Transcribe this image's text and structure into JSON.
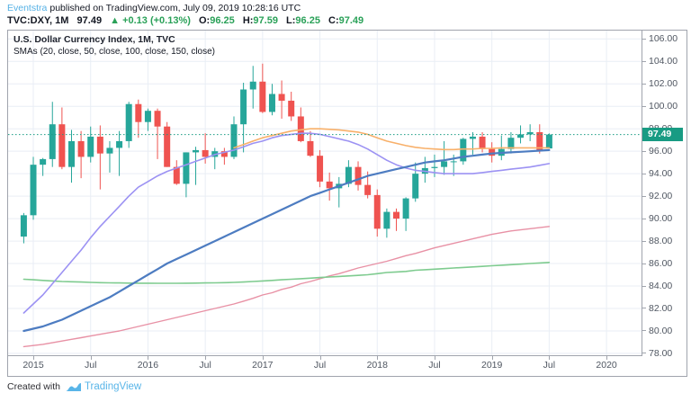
{
  "header": {
    "publisher": "Eventstra",
    "published_text": "published on TradingView.com, July 09, 2019 10:28:16 UTC",
    "symbol": "TVC:DXY, 1M",
    "last_price": "97.49",
    "change_arrow": "▲",
    "change_text": "+0.13 (+0.13%)",
    "ohlc": [
      {
        "label": "O:",
        "value": "96.25"
      },
      {
        "label": "H:",
        "value": "97.59"
      },
      {
        "label": "L:",
        "value": "96.25"
      },
      {
        "label": "C:",
        "value": "97.49"
      }
    ]
  },
  "chart": {
    "title": "U.S. Dollar Currency Index, 1M, TVC",
    "subtitle": "SMAs (20, close, 50, close, 100, close, 150, close)"
  },
  "footer": {
    "created_with": "Created with",
    "brand": "TradingView"
  },
  "chart_data": {
    "type": "candlestick",
    "symbol": "TVC:DXY",
    "timeframe": "1M",
    "grid": true,
    "colors": {
      "up": "#26a69a",
      "down": "#ef5350",
      "current_price": "#189b83",
      "grid": "#e9eef5",
      "axis_text": "#4f5661",
      "header_green": "#2aa158",
      "brand_blue": "#59b5e8"
    },
    "y_axis": {
      "min": 78,
      "max": 106,
      "step": 2,
      "labels": [
        "106.00",
        "104.00",
        "102.00",
        "100.00",
        "98.00",
        "96.00",
        "94.00",
        "92.00",
        "90.00",
        "88.00",
        "86.00",
        "84.00",
        "82.00",
        "80.00",
        "78.00"
      ]
    },
    "x_ticks": [
      {
        "label": "2015",
        "month_index": 1
      },
      {
        "label": "Jul",
        "month_index": 7
      },
      {
        "label": "2016",
        "month_index": 13
      },
      {
        "label": "Jul",
        "month_index": 19
      },
      {
        "label": "2017",
        "month_index": 25
      },
      {
        "label": "Jul",
        "month_index": 31
      },
      {
        "label": "2018",
        "month_index": 37
      },
      {
        "label": "Jul",
        "month_index": 43
      },
      {
        "label": "2019",
        "month_index": 49
      },
      {
        "label": "Jul",
        "month_index": 55
      },
      {
        "label": "2020",
        "month_index": 61
      }
    ],
    "current_price": {
      "value": 97.49,
      "label": "97.49"
    },
    "candles": [
      [
        "2014-12",
        88.4,
        90.5,
        87.8,
        90.3
      ],
      [
        "2015-01",
        90.3,
        95.5,
        89.9,
        94.8
      ],
      [
        "2015-02",
        94.8,
        95.4,
        93.8,
        95.3
      ],
      [
        "2015-03",
        95.3,
        100.4,
        94.6,
        98.4
      ],
      [
        "2015-04",
        98.4,
        99.9,
        94.4,
        94.6
      ],
      [
        "2015-05",
        94.6,
        97.9,
        93.2,
        96.9
      ],
      [
        "2015-06",
        96.9,
        97.8,
        93.6,
        95.5
      ],
      [
        "2015-07",
        95.5,
        98.2,
        95.0,
        97.3
      ],
      [
        "2015-08",
        97.3,
        98.3,
        92.6,
        95.8
      ],
      [
        "2015-09",
        95.8,
        96.9,
        94.1,
        96.3
      ],
      [
        "2015-10",
        96.3,
        97.8,
        93.8,
        96.9
      ],
      [
        "2015-11",
        96.9,
        100.4,
        96.3,
        100.2
      ],
      [
        "2015-12",
        100.2,
        100.6,
        97.2,
        98.6
      ],
      [
        "2016-01",
        98.6,
        99.8,
        97.8,
        99.6
      ],
      [
        "2016-02",
        99.6,
        99.8,
        95.3,
        98.2
      ],
      [
        "2016-03",
        98.2,
        98.6,
        94.6,
        94.6
      ],
      [
        "2016-04",
        94.6,
        95.2,
        93.0,
        93.1
      ],
      [
        "2016-05",
        93.1,
        95.9,
        91.9,
        95.9
      ],
      [
        "2016-06",
        95.9,
        96.4,
        93.0,
        96.1
      ],
      [
        "2016-07",
        96.1,
        97.6,
        94.9,
        95.5
      ],
      [
        "2016-08",
        95.5,
        96.3,
        94.4,
        96.0
      ],
      [
        "2016-09",
        96.0,
        96.3,
        94.8,
        95.5
      ],
      [
        "2016-10",
        95.5,
        99.1,
        95.3,
        98.4
      ],
      [
        "2016-11",
        98.4,
        102.1,
        95.9,
        101.5
      ],
      [
        "2016-12",
        101.5,
        103.6,
        99.8,
        102.2
      ],
      [
        "2017-01",
        102.2,
        103.8,
        99.4,
        99.5
      ],
      [
        "2017-02",
        99.5,
        102.0,
        99.2,
        101.1
      ],
      [
        "2017-03",
        101.1,
        102.3,
        98.9,
        100.5
      ],
      [
        "2017-04",
        100.5,
        101.3,
        98.7,
        99.1
      ],
      [
        "2017-05",
        99.1,
        99.9,
        96.8,
        96.9
      ],
      [
        "2017-06",
        96.9,
        97.8,
        95.5,
        95.6
      ],
      [
        "2017-07",
        95.6,
        96.1,
        92.8,
        93.3
      ],
      [
        "2017-08",
        93.3,
        94.1,
        91.6,
        92.7
      ],
      [
        "2017-09",
        92.7,
        93.7,
        91.0,
        93.1
      ],
      [
        "2017-10",
        93.1,
        95.2,
        92.8,
        94.6
      ],
      [
        "2017-11",
        94.6,
        95.1,
        92.5,
        93.0
      ],
      [
        "2017-12",
        93.0,
        94.2,
        91.8,
        92.1
      ],
      [
        "2018-01",
        92.1,
        92.6,
        88.4,
        89.1
      ],
      [
        "2018-02",
        89.1,
        90.9,
        88.3,
        90.6
      ],
      [
        "2018-03",
        90.6,
        90.9,
        88.9,
        90.0
      ],
      [
        "2018-04",
        90.0,
        91.9,
        88.9,
        91.8
      ],
      [
        "2018-05",
        91.8,
        95.0,
        91.5,
        94.0
      ],
      [
        "2018-06",
        94.0,
        95.5,
        93.2,
        94.5
      ],
      [
        "2018-07",
        94.5,
        95.7,
        93.7,
        94.6
      ],
      [
        "2018-08",
        94.6,
        96.9,
        93.9,
        95.1
      ],
      [
        "2018-09",
        95.1,
        95.7,
        93.8,
        95.1
      ],
      [
        "2018-10",
        95.1,
        97.2,
        94.8,
        97.1
      ],
      [
        "2018-11",
        97.1,
        97.7,
        95.7,
        97.3
      ],
      [
        "2018-12",
        97.3,
        97.7,
        95.9,
        96.2
      ],
      [
        "2019-01",
        96.2,
        96.8,
        95.0,
        95.6
      ],
      [
        "2019-02",
        95.6,
        97.4,
        95.2,
        96.2
      ],
      [
        "2019-03",
        96.2,
        97.7,
        95.8,
        97.2
      ],
      [
        "2019-04",
        97.2,
        98.3,
        96.7,
        97.5
      ],
      [
        "2019-05",
        97.5,
        98.4,
        96.9,
        97.7
      ],
      [
        "2019-06",
        97.7,
        98.4,
        95.8,
        96.1
      ],
      [
        "2019-07",
        96.25,
        97.59,
        96.25,
        97.49
      ]
    ],
    "overlays": [
      {
        "name": "ma-pink",
        "color": "#e891a5",
        "width": 1.4,
        "values": [
          78.6,
          78.7,
          78.8,
          78.95,
          79.1,
          79.25,
          79.4,
          79.55,
          79.7,
          79.85,
          80.0,
          80.2,
          80.4,
          80.6,
          80.8,
          81.0,
          81.2,
          81.4,
          81.6,
          81.8,
          82.0,
          82.2,
          82.4,
          82.65,
          82.9,
          83.2,
          83.4,
          83.7,
          83.9,
          84.2,
          84.4,
          84.65,
          84.9,
          85.1,
          85.35,
          85.6,
          85.8,
          86.0,
          86.2,
          86.45,
          86.7,
          86.9,
          87.15,
          87.4,
          87.6,
          87.8,
          88.0,
          88.2,
          88.4,
          88.6,
          88.75,
          88.9,
          89.0,
          89.1,
          89.2,
          89.3
        ]
      },
      {
        "name": "ma-green",
        "color": "#7ecb8f",
        "width": 1.6,
        "values": [
          84.6,
          84.55,
          84.5,
          84.45,
          84.4,
          84.38,
          84.35,
          84.32,
          84.3,
          84.28,
          84.27,
          84.26,
          84.25,
          84.25,
          84.24,
          84.24,
          84.24,
          84.25,
          84.26,
          84.27,
          84.28,
          84.3,
          84.32,
          84.35,
          84.4,
          84.45,
          84.5,
          84.55,
          84.6,
          84.65,
          84.7,
          84.75,
          84.8,
          84.85,
          84.9,
          84.95,
          85.0,
          85.1,
          85.2,
          85.25,
          85.3,
          85.4,
          85.45,
          85.5,
          85.55,
          85.6,
          85.65,
          85.7,
          85.75,
          85.8,
          85.85,
          85.9,
          85.95,
          86.0,
          86.05,
          86.1
        ]
      },
      {
        "name": "ma-purple",
        "color": "#9c92f3",
        "width": 1.6,
        "values": [
          81.6,
          82.4,
          83.2,
          84.2,
          85.2,
          86.2,
          87.2,
          88.3,
          89.3,
          90.2,
          91.1,
          92.0,
          92.8,
          93.3,
          93.8,
          94.2,
          94.5,
          94.8,
          95.1,
          95.4,
          95.7,
          95.9,
          96.1,
          96.4,
          96.7,
          96.9,
          97.2,
          97.4,
          97.5,
          97.6,
          97.6,
          97.5,
          97.3,
          97.1,
          96.9,
          96.6,
          96.2,
          95.7,
          95.2,
          94.8,
          94.5,
          94.3,
          94.2,
          94.1,
          94.0,
          94.0,
          94.0,
          94.0,
          94.1,
          94.2,
          94.3,
          94.4,
          94.5,
          94.6,
          94.75,
          94.9
        ]
      },
      {
        "name": "ma-orange",
        "color": "#f8b06a",
        "width": 1.6,
        "values": [
          null,
          null,
          null,
          null,
          null,
          null,
          null,
          null,
          null,
          null,
          null,
          null,
          null,
          null,
          null,
          null,
          null,
          null,
          null,
          null,
          null,
          null,
          96.3,
          96.6,
          96.9,
          97.2,
          97.4,
          97.6,
          97.8,
          97.9,
          98.0,
          98.0,
          97.95,
          97.9,
          97.8,
          97.7,
          97.5,
          97.2,
          96.9,
          96.7,
          96.5,
          96.35,
          96.25,
          96.2,
          96.15,
          96.15,
          96.2,
          96.2,
          96.25,
          96.25,
          96.3,
          96.3,
          96.3,
          96.3,
          96.3,
          96.3
        ]
      },
      {
        "name": "ma-blue",
        "color": "#4d7cc1",
        "width": 2.2,
        "values": [
          80.0,
          80.2,
          80.4,
          80.7,
          81.0,
          81.4,
          81.8,
          82.2,
          82.6,
          83.0,
          83.5,
          84.0,
          84.5,
          85.0,
          85.5,
          86.0,
          86.4,
          86.8,
          87.2,
          87.6,
          88.0,
          88.4,
          88.8,
          89.2,
          89.6,
          90.0,
          90.4,
          90.8,
          91.2,
          91.6,
          92.0,
          92.3,
          92.6,
          92.9,
          93.2,
          93.5,
          93.8,
          94.0,
          94.2,
          94.4,
          94.6,
          94.8,
          95.0,
          95.1,
          95.2,
          95.35,
          95.5,
          95.6,
          95.7,
          95.8,
          95.85,
          95.9,
          95.95,
          96.0,
          96.05,
          96.1
        ]
      }
    ]
  }
}
